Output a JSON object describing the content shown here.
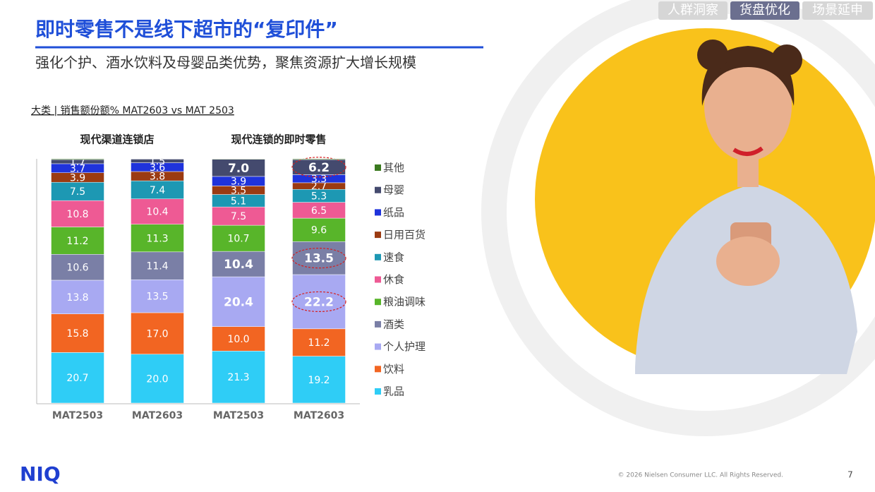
{
  "title": "即时零售不是线下超市的“复印件”",
  "subtitle": "强化个护、酒水饮料及母婴品类优势，聚焦资源扩大增长规模",
  "tabs": [
    "人群洞察",
    "货盘优化",
    "场景延申"
  ],
  "logo": "NIQ",
  "copyright": "© 2026 Nielsen Consumer LLC. All Rights Reserved.",
  "page_number": "7",
  "chart_data": {
    "type": "stacked_bar",
    "title": "大类 | 销售额份额% MAT2603 vs MAT 2503",
    "groups": [
      "现代渠道连锁店",
      "现代连锁的即时零售"
    ],
    "categories": [
      "MAT2503",
      "MAT2603",
      "MAT2503",
      "MAT2603"
    ],
    "ylim": [
      0,
      100
    ],
    "series": [
      {
        "name": "乳品",
        "color": "#2fcdf6",
        "values": [
          20.7,
          20.0,
          21.3,
          19.2
        ],
        "value_labels": [
          "20.7",
          "20.0",
          "21.3",
          "19.2"
        ]
      },
      {
        "name": "饮料",
        "color": "#f26522",
        "values": [
          15.8,
          17.0,
          10.0,
          11.2
        ],
        "value_labels": [
          "15.8",
          "17.0",
          "10.0",
          "11.2"
        ]
      },
      {
        "name": "个人护理",
        "color": "#a8a9f2",
        "values": [
          13.8,
          13.5,
          20.4,
          22.2
        ],
        "value_labels": [
          "13.8",
          "13.5",
          "20.4",
          "22.2"
        ]
      },
      {
        "name": "酒类",
        "color": "#7a7fa6",
        "values": [
          10.6,
          11.4,
          10.4,
          13.5
        ],
        "value_labels": [
          "10.6",
          "11.4",
          "10.4",
          "13.5"
        ]
      },
      {
        "name": "粮油调味",
        "color": "#58b52a",
        "values": [
          11.2,
          11.3,
          10.7,
          9.6
        ],
        "value_labels": [
          "11.2",
          "11.3",
          "10.7",
          "9.6"
        ]
      },
      {
        "name": "休食",
        "color": "#ee5a94",
        "values": [
          10.8,
          10.4,
          7.5,
          6.5
        ],
        "value_labels": [
          "10.8",
          "10.4",
          "7.5",
          "6.5"
        ]
      },
      {
        "name": "速食",
        "color": "#1d98b3",
        "values": [
          7.5,
          7.4,
          5.1,
          5.3
        ],
        "value_labels": [
          "7.5",
          "7.4",
          "5.1",
          "5.3"
        ]
      },
      {
        "name": "日用百货",
        "color": "#9b3b12",
        "values": [
          3.9,
          3.8,
          3.5,
          2.7
        ],
        "value_labels": [
          "3.9",
          "3.8",
          "3.5",
          "2.7"
        ]
      },
      {
        "name": "纸品",
        "color": "#1f33dc",
        "values": [
          3.7,
          3.6,
          3.9,
          3.3
        ],
        "value_labels": [
          "3.7",
          "3.6",
          "3.9",
          "3.3"
        ]
      },
      {
        "name": "母婴",
        "color": "#444a6e",
        "values": [
          1.7,
          1.5,
          7.0,
          6.2
        ],
        "value_labels": [
          "1.7",
          "1.5",
          "7.0",
          "6.2"
        ]
      },
      {
        "name": "其他",
        "color": "#3b7a1f",
        "values": [
          0.3,
          0.1,
          0.2,
          0.3
        ],
        "value_labels": [
          null,
          null,
          null,
          null
        ]
      }
    ]
  }
}
